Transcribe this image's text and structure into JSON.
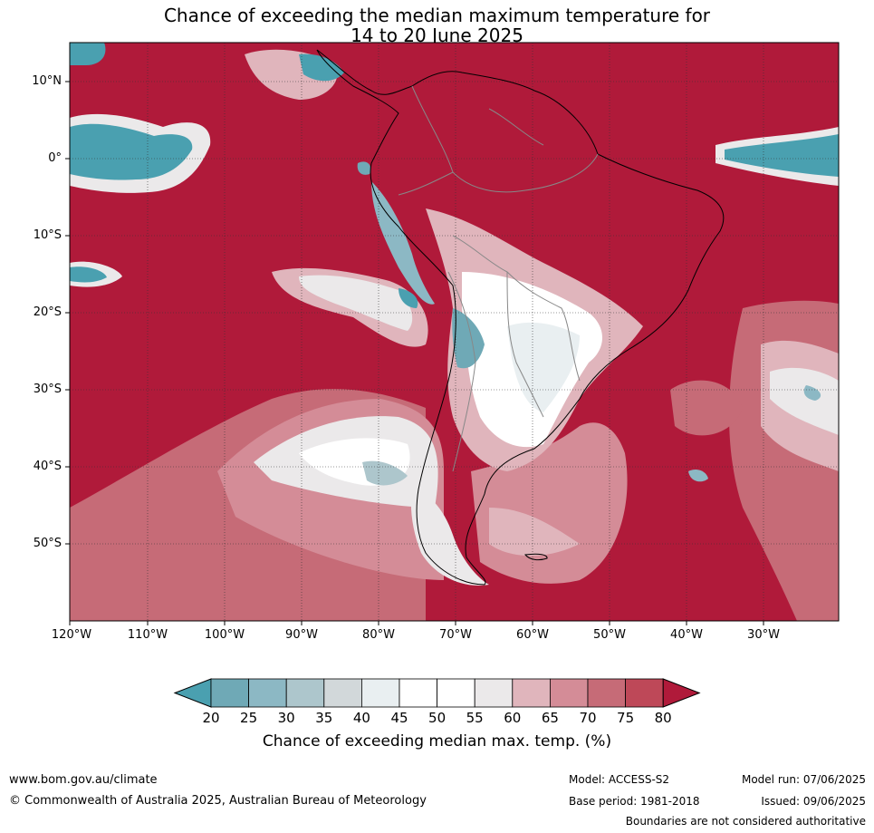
{
  "title_line1": "Chance of exceeding the median maximum temperature for",
  "title_line2": "14 to 20 June 2025",
  "lat_labels": [
    "10°N",
    "0°",
    "10°S",
    "20°S",
    "30°S",
    "40°S",
    "50°S"
  ],
  "lon_labels": [
    "120°W",
    "110°W",
    "100°W",
    "90°W",
    "80°W",
    "70°W",
    "60°W",
    "50°W",
    "40°W",
    "30°W"
  ],
  "colorbar": {
    "ticks": [
      "20",
      "25",
      "30",
      "35",
      "40",
      "45",
      "50",
      "55",
      "60",
      "65",
      "70",
      "75",
      "80"
    ],
    "colors": [
      "#4aa0b0",
      "#6fa9b6",
      "#8cb8c4",
      "#adc6cc",
      "#d2d8da",
      "#e9eff1",
      "#ffffff",
      "#ffffff",
      "#ebe9ea",
      "#e0b5bc",
      "#d48c97",
      "#c66b77",
      "#be4858",
      "#b01a3a"
    ],
    "label": "Chance of exceeding median max. temp. (%)"
  },
  "footer": {
    "url": "www.bom.gov.au/climate",
    "copyright": "© Commonwealth of Australia 2025, Australian Bureau of Meteorology",
    "model": "Model: ACCESS-S2",
    "base_period": "Base period: 1981-2018",
    "model_run": "Model run: 07/06/2025",
    "issued": "Issued: 09/06/2025",
    "disclaimer": "Boundaries are not considered authoritative"
  }
}
